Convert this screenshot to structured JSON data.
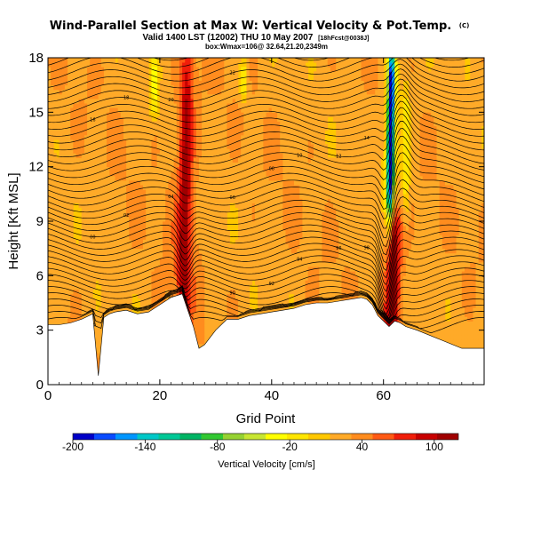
{
  "header": {
    "title": "Wind-Parallel Section at Max W: Vertical Velocity & Pot.Temp.",
    "title_mark": "(C)",
    "valid_line": "Valid 1400 LST (12002) THU 10 May 2007",
    "forecast_tag": "[18hFcst@0038J]",
    "subtitle": "box:Wmax=106@ 32.64,21.20,2349m"
  },
  "chart_data": {
    "type": "heatmap",
    "title": "Wind-Parallel Section at Max W: Vertical Velocity & Pot.Temp.",
    "xlabel": "Grid Point",
    "ylabel": "Height [Kft MSL]",
    "xlim": [
      0,
      78
    ],
    "ylim": [
      0,
      18
    ],
    "x_ticks": [
      "0",
      "20",
      "40",
      "60"
    ],
    "y_ticks": [
      "0",
      "3",
      "6",
      "9",
      "12",
      "15",
      "18"
    ],
    "colorbar": {
      "label": "Vertical Velocity [cm/s]",
      "tick_labels": [
        "-200",
        "-140",
        "-80",
        "-20",
        "40",
        "100"
      ],
      "range": [
        -200,
        120
      ],
      "colors": [
        "#0000c8",
        "#0a4bff",
        "#0096ff",
        "#00c8c8",
        "#00c896",
        "#00b464",
        "#32c832",
        "#96d232",
        "#c8e632",
        "#ffff00",
        "#ffe600",
        "#ffc800",
        "#ffaa28",
        "#ff8c1e",
        "#ff5a14",
        "#f01e0a",
        "#c80000",
        "#a00000"
      ]
    },
    "w_field": {
      "background": 25,
      "updrafts": [
        {
          "x": 24.5,
          "z_range": [
            3.0,
            18
          ],
          "peak": 95,
          "label": "narrow updraft near grid point 24"
        },
        {
          "x": 62.0,
          "z_range": [
            2.0,
            9.5
          ],
          "peak": 106,
          "label": "main updraft (Wmax=106)"
        }
      ],
      "downdrafts": [
        {
          "x": 61.3,
          "z_range": [
            10,
            18
          ],
          "min": -200,
          "label": "downdraft above main updraft"
        }
      ],
      "weak_zones": [
        {
          "x": 19,
          "z_range": [
            14.5,
            18
          ]
        },
        {
          "x": 35,
          "z_range": [
            15.5,
            18
          ]
        },
        {
          "x": 64,
          "z_range": [
            9,
            17
          ]
        }
      ]
    },
    "theta_contours": {
      "units": "K",
      "labeled_values": [
        "84",
        "86",
        "88",
        "90",
        "92",
        "94",
        "96",
        "98",
        "00",
        "02",
        "04",
        "06",
        "08",
        "10",
        "12",
        "14",
        "16",
        "18",
        "20",
        "22",
        "24",
        "26",
        "28",
        "30",
        "32",
        "34",
        "36",
        "38",
        "40",
        "42",
        "44",
        "46",
        "48",
        "50"
      ]
    },
    "terrain_profile": {
      "x": [
        0,
        2,
        4,
        6,
        8,
        9,
        10,
        11,
        12,
        14,
        16,
        18,
        20,
        22,
        24,
        26,
        27,
        28,
        30,
        32,
        34,
        36,
        38,
        40,
        42,
        44,
        46,
        48,
        50,
        52,
        54,
        56,
        57,
        58,
        59,
        60,
        61,
        62,
        63,
        64,
        66,
        70,
        74,
        76,
        78
      ],
      "z_kft": [
        3.3,
        3.3,
        3.4,
        3.6,
        3.9,
        0.5,
        3.7,
        3.9,
        4.0,
        4.1,
        3.9,
        4.0,
        4.4,
        4.8,
        5.0,
        3.2,
        2.0,
        2.2,
        3.0,
        3.6,
        3.6,
        3.8,
        3.9,
        4.0,
        4.1,
        4.2,
        4.4,
        4.5,
        4.5,
        4.6,
        4.7,
        4.8,
        4.7,
        4.4,
        3.8,
        3.5,
        3.2,
        3.5,
        3.4,
        3.2,
        3.0,
        2.5,
        2.0,
        2.0,
        2.0
      ]
    }
  }
}
